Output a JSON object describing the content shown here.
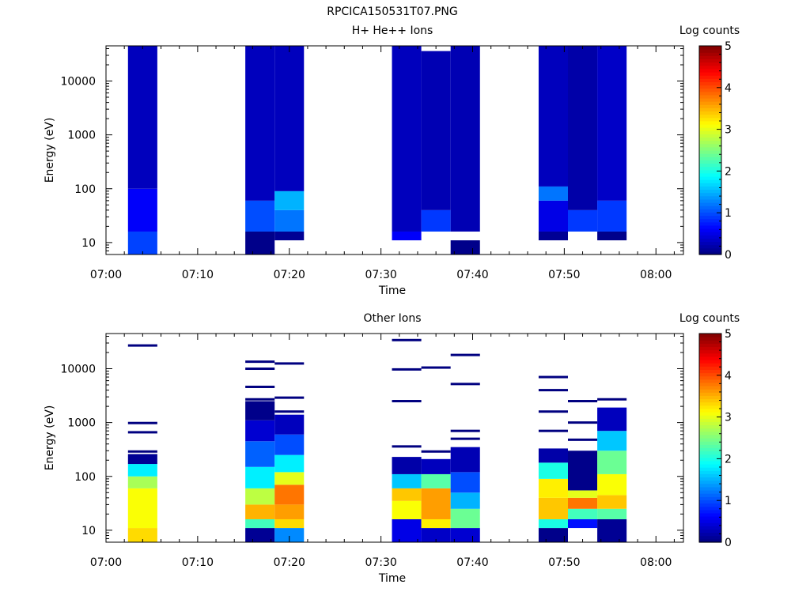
{
  "page": {
    "title": "RPCICA150531T07.PNG"
  },
  "chart_data": [
    {
      "type": "heatmap",
      "title": "H+ He++ Ions",
      "xlabel": "Time",
      "ylabel": "Energy (eV)",
      "x_ticks": [
        "07:00",
        "07:10",
        "07:20",
        "07:30",
        "07:40",
        "07:50",
        "08:00"
      ],
      "x_range": [
        "07:00",
        "08:03"
      ],
      "y_scale": "log",
      "y_ticks": [
        "10",
        "100",
        "1000",
        "10000"
      ],
      "y_range": [
        6,
        45000
      ],
      "colorbar": {
        "label": "Log counts",
        "ticks": [
          "0",
          "1",
          "2",
          "3",
          "4",
          "5"
        ],
        "range": [
          0,
          5
        ],
        "colormap": "jet"
      },
      "columns": [
        {
          "start": "07:02:24",
          "end": "07:05:36",
          "bands": [
            {
              "e_min": 6,
              "e_max": 16,
              "value": 0.95
            },
            {
              "e_min": 16,
              "e_max": 100,
              "value": 0.6
            },
            {
              "e_min": 100,
              "e_max": 45000,
              "value": 0.3
            }
          ]
        },
        {
          "start": "07:15:12",
          "end": "07:18:24",
          "bands": [
            {
              "e_min": 6,
              "e_max": 16,
              "value": 0.05
            },
            {
              "e_min": 16,
              "e_max": 60,
              "value": 1.0
            },
            {
              "e_min": 60,
              "e_max": 45000,
              "value": 0.3
            }
          ]
        },
        {
          "start": "07:18:24",
          "end": "07:21:36",
          "bands": [
            {
              "e_min": 11,
              "e_max": 16,
              "value": 0.1
            },
            {
              "e_min": 16,
              "e_max": 40,
              "value": 1.2
            },
            {
              "e_min": 40,
              "e_max": 90,
              "value": 1.5
            },
            {
              "e_min": 90,
              "e_max": 45000,
              "value": 0.3
            }
          ]
        },
        {
          "start": "07:31:12",
          "end": "07:34:24",
          "bands": [
            {
              "e_min": 11,
              "e_max": 16,
              "value": 0.6
            },
            {
              "e_min": 16,
              "e_max": 45000,
              "value": 0.3
            }
          ]
        },
        {
          "start": "07:34:24",
          "end": "07:37:36",
          "bands": [
            {
              "e_min": 16,
              "e_max": 40,
              "value": 0.9
            },
            {
              "e_min": 40,
              "e_max": 36000,
              "value": 0.25
            }
          ]
        },
        {
          "start": "07:37:36",
          "end": "07:40:48",
          "bands": [
            {
              "e_min": 6,
              "e_max": 11,
              "value": 0.05
            },
            {
              "e_min": 16,
              "e_max": 45000,
              "value": 0.25
            }
          ]
        },
        {
          "start": "07:47:12",
          "end": "07:50:24",
          "bands": [
            {
              "e_min": 11,
              "e_max": 16,
              "value": 0.1
            },
            {
              "e_min": 16,
              "e_max": 60,
              "value": 0.5
            },
            {
              "e_min": 60,
              "e_max": 110,
              "value": 1.2
            },
            {
              "e_min": 110,
              "e_max": 45000,
              "value": 0.3
            }
          ]
        },
        {
          "start": "07:50:24",
          "end": "07:53:36",
          "bands": [
            {
              "e_min": 16,
              "e_max": 40,
              "value": 0.9
            },
            {
              "e_min": 40,
              "e_max": 45000,
              "value": 0.2
            }
          ]
        },
        {
          "start": "07:53:36",
          "end": "07:56:48",
          "bands": [
            {
              "e_min": 11,
              "e_max": 16,
              "value": 0.05
            },
            {
              "e_min": 16,
              "e_max": 60,
              "value": 0.9
            },
            {
              "e_min": 60,
              "e_max": 45000,
              "value": 0.35
            }
          ]
        }
      ]
    },
    {
      "type": "heatmap",
      "title": "Other Ions",
      "xlabel": "Time",
      "ylabel": "Energy (eV)",
      "x_ticks": [
        "07:00",
        "07:10",
        "07:20",
        "07:30",
        "07:40",
        "07:50",
        "08:00"
      ],
      "x_range": [
        "07:00",
        "08:03"
      ],
      "y_scale": "log",
      "y_ticks": [
        "10",
        "100",
        "1000",
        "10000"
      ],
      "y_range": [
        6,
        45000
      ],
      "colorbar": {
        "label": "Log counts",
        "ticks": [
          "0",
          "1",
          "2",
          "3",
          "4",
          "5"
        ],
        "range": [
          0,
          5
        ],
        "colormap": "jet"
      },
      "columns": [
        {
          "start": "07:02:24",
          "end": "07:05:36",
          "bands": [
            {
              "e_min": 6,
              "e_max": 11,
              "value": 3.3
            },
            {
              "e_min": 11,
              "e_max": 60,
              "value": 3.1
            },
            {
              "e_min": 60,
              "e_max": 100,
              "value": 2.7
            },
            {
              "e_min": 100,
              "e_max": 170,
              "value": 1.8
            },
            {
              "e_min": 170,
              "e_max": 260,
              "value": 0.1
            }
          ],
          "lines": [
            {
              "energy": 290,
              "value": 0
            },
            {
              "energy": 660,
              "value": 0
            },
            {
              "energy": 980,
              "value": 0
            },
            {
              "energy": 27000,
              "value": 0
            }
          ]
        },
        {
          "start": "07:15:12",
          "end": "07:18:24",
          "bands": [
            {
              "e_min": 6,
              "e_max": 11,
              "value": 0.1
            },
            {
              "e_min": 11,
              "e_max": 16,
              "value": 2.2
            },
            {
              "e_min": 16,
              "e_max": 30,
              "value": 3.5
            },
            {
              "e_min": 30,
              "e_max": 60,
              "value": 2.8
            },
            {
              "e_min": 60,
              "e_max": 150,
              "value": 1.8
            },
            {
              "e_min": 150,
              "e_max": 450,
              "value": 1.1
            },
            {
              "e_min": 450,
              "e_max": 1100,
              "value": 0.4
            },
            {
              "e_min": 1100,
              "e_max": 2500,
              "value": 0.05
            }
          ],
          "lines": [
            {
              "energy": 2700,
              "value": 0
            },
            {
              "energy": 4600,
              "value": 0
            },
            {
              "energy": 10000,
              "value": 0
            },
            {
              "energy": 13500,
              "value": 0
            }
          ]
        },
        {
          "start": "07:18:24",
          "end": "07:21:36",
          "bands": [
            {
              "e_min": 6,
              "e_max": 11,
              "value": 1.3
            },
            {
              "e_min": 11,
              "e_max": 16,
              "value": 3.3
            },
            {
              "e_min": 16,
              "e_max": 30,
              "value": 3.6
            },
            {
              "e_min": 30,
              "e_max": 70,
              "value": 3.8
            },
            {
              "e_min": 70,
              "e_max": 120,
              "value": 3.0
            },
            {
              "e_min": 120,
              "e_max": 250,
              "value": 1.8
            },
            {
              "e_min": 250,
              "e_max": 600,
              "value": 1.0
            },
            {
              "e_min": 600,
              "e_max": 1400,
              "value": 0.3
            }
          ],
          "lines": [
            {
              "energy": 1600,
              "value": 0
            },
            {
              "energy": 2900,
              "value": 0
            },
            {
              "energy": 12500,
              "value": 0
            }
          ]
        },
        {
          "start": "07:31:12",
          "end": "07:34:24",
          "bands": [
            {
              "e_min": 6,
              "e_max": 16,
              "value": 0.5
            },
            {
              "e_min": 16,
              "e_max": 35,
              "value": 3.1
            },
            {
              "e_min": 35,
              "e_max": 60,
              "value": 3.4
            },
            {
              "e_min": 60,
              "e_max": 110,
              "value": 1.6
            },
            {
              "e_min": 110,
              "e_max": 230,
              "value": 0.2
            }
          ],
          "lines": [
            {
              "energy": 360,
              "value": 0
            },
            {
              "energy": 2500,
              "value": 0
            },
            {
              "energy": 9700,
              "value": 0
            },
            {
              "energy": 34000,
              "value": 0
            }
          ]
        },
        {
          "start": "07:34:24",
          "end": "07:37:36",
          "bands": [
            {
              "e_min": 6,
              "e_max": 11,
              "value": 0.35
            },
            {
              "e_min": 11,
              "e_max": 16,
              "value": 3.2
            },
            {
              "e_min": 16,
              "e_max": 60,
              "value": 3.6
            },
            {
              "e_min": 60,
              "e_max": 110,
              "value": 2.3
            },
            {
              "e_min": 110,
              "e_max": 210,
              "value": 0.3
            }
          ],
          "lines": [
            {
              "energy": 290,
              "value": 0
            },
            {
              "energy": 10500,
              "value": 0
            }
          ]
        },
        {
          "start": "07:37:36",
          "end": "07:40:48",
          "bands": [
            {
              "e_min": 6,
              "e_max": 11,
              "value": 0.4
            },
            {
              "e_min": 11,
              "e_max": 25,
              "value": 2.4
            },
            {
              "e_min": 25,
              "e_max": 50,
              "value": 1.5
            },
            {
              "e_min": 50,
              "e_max": 120,
              "value": 1.0
            },
            {
              "e_min": 120,
              "e_max": 350,
              "value": 0.25
            }
          ],
          "lines": [
            {
              "energy": 500,
              "value": 0
            },
            {
              "energy": 700,
              "value": 0
            },
            {
              "energy": 5200,
              "value": 0
            },
            {
              "energy": 18000,
              "value": 0
            }
          ]
        },
        {
          "start": "07:47:12",
          "end": "07:50:24",
          "bands": [
            {
              "e_min": 6,
              "e_max": 11,
              "value": 0.05
            },
            {
              "e_min": 11,
              "e_max": 16,
              "value": 2.0
            },
            {
              "e_min": 16,
              "e_max": 40,
              "value": 3.4
            },
            {
              "e_min": 40,
              "e_max": 90,
              "value": 3.2
            },
            {
              "e_min": 90,
              "e_max": 180,
              "value": 2.0
            },
            {
              "e_min": 180,
              "e_max": 330,
              "value": 0.2
            }
          ],
          "lines": [
            {
              "energy": 700,
              "value": 0
            },
            {
              "energy": 1600,
              "value": 0
            },
            {
              "energy": 4000,
              "value": 0
            },
            {
              "energy": 7000,
              "value": 0
            }
          ]
        },
        {
          "start": "07:50:24",
          "end": "07:53:36",
          "bands": [
            {
              "e_min": 11,
              "e_max": 16,
              "value": 0.7
            },
            {
              "e_min": 16,
              "e_max": 25,
              "value": 2.2
            },
            {
              "e_min": 25,
              "e_max": 40,
              "value": 3.8
            },
            {
              "e_min": 40,
              "e_max": 55,
              "value": 3.0
            },
            {
              "e_min": 55,
              "e_max": 300,
              "value": 0.05
            }
          ],
          "lines": [
            {
              "energy": 480,
              "value": 0
            },
            {
              "energy": 1000,
              "value": 0
            },
            {
              "energy": 2500,
              "value": 0
            }
          ]
        },
        {
          "start": "07:53:36",
          "end": "07:56:48",
          "bands": [
            {
              "e_min": 6,
              "e_max": 16,
              "value": 0.1
            },
            {
              "e_min": 16,
              "e_max": 25,
              "value": 2.3
            },
            {
              "e_min": 25,
              "e_max": 45,
              "value": 3.4
            },
            {
              "e_min": 45,
              "e_max": 110,
              "value": 3.1
            },
            {
              "e_min": 110,
              "e_max": 300,
              "value": 2.4
            },
            {
              "e_min": 300,
              "e_max": 700,
              "value": 1.6
            },
            {
              "e_min": 700,
              "e_max": 1900,
              "value": 0.3
            }
          ],
          "lines": [
            {
              "energy": 2700,
              "value": 0
            }
          ]
        }
      ]
    }
  ]
}
